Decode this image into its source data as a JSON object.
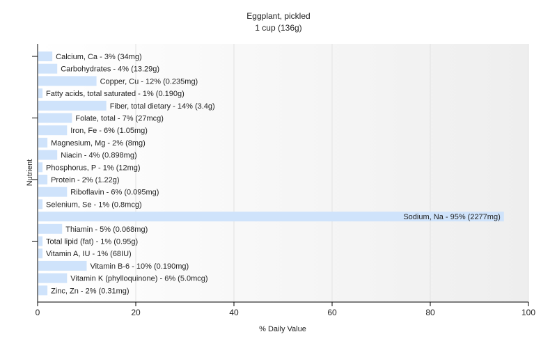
{
  "chart_data": {
    "type": "bar",
    "orientation": "horizontal",
    "title": "Eggplant, pickled",
    "subtitle": "1 cup (136g)",
    "xlabel": "% Daily Value",
    "ylabel": "Nutrient",
    "xlim": [
      0,
      100
    ],
    "xticks": [
      0,
      20,
      40,
      60,
      80,
      100
    ],
    "grid": true,
    "bar_color": "#cfe3fb",
    "categories": [
      "Calcium, Ca - 3% (34mg)",
      "Carbohydrates - 4% (13.29g)",
      "Copper, Cu - 12% (0.235mg)",
      "Fatty acids, total saturated - 1% (0.190g)",
      "Fiber, total dietary - 14% (3.4g)",
      "Folate, total - 7% (27mcg)",
      "Iron, Fe - 6% (1.05mg)",
      "Magnesium, Mg - 2% (8mg)",
      "Niacin - 4% (0.898mg)",
      "Phosphorus, P - 1% (12mg)",
      "Protein - 2% (1.22g)",
      "Riboflavin - 6% (0.095mg)",
      "Selenium, Se - 1% (0.8mcg)",
      "Sodium, Na - 95% (2277mg)",
      "Thiamin - 5% (0.068mg)",
      "Total lipid (fat) - 1% (0.95g)",
      "Vitamin A, IU - 1% (68IU)",
      "Vitamin B-6 - 10% (0.190mg)",
      "Vitamin K (phylloquinone) - 6% (5.0mcg)",
      "Zinc, Zn - 2% (0.31mg)"
    ],
    "values": [
      3,
      4,
      12,
      1,
      14,
      7,
      6,
      2,
      4,
      1,
      2,
      6,
      1,
      95,
      5,
      1,
      1,
      10,
      6,
      2
    ]
  }
}
